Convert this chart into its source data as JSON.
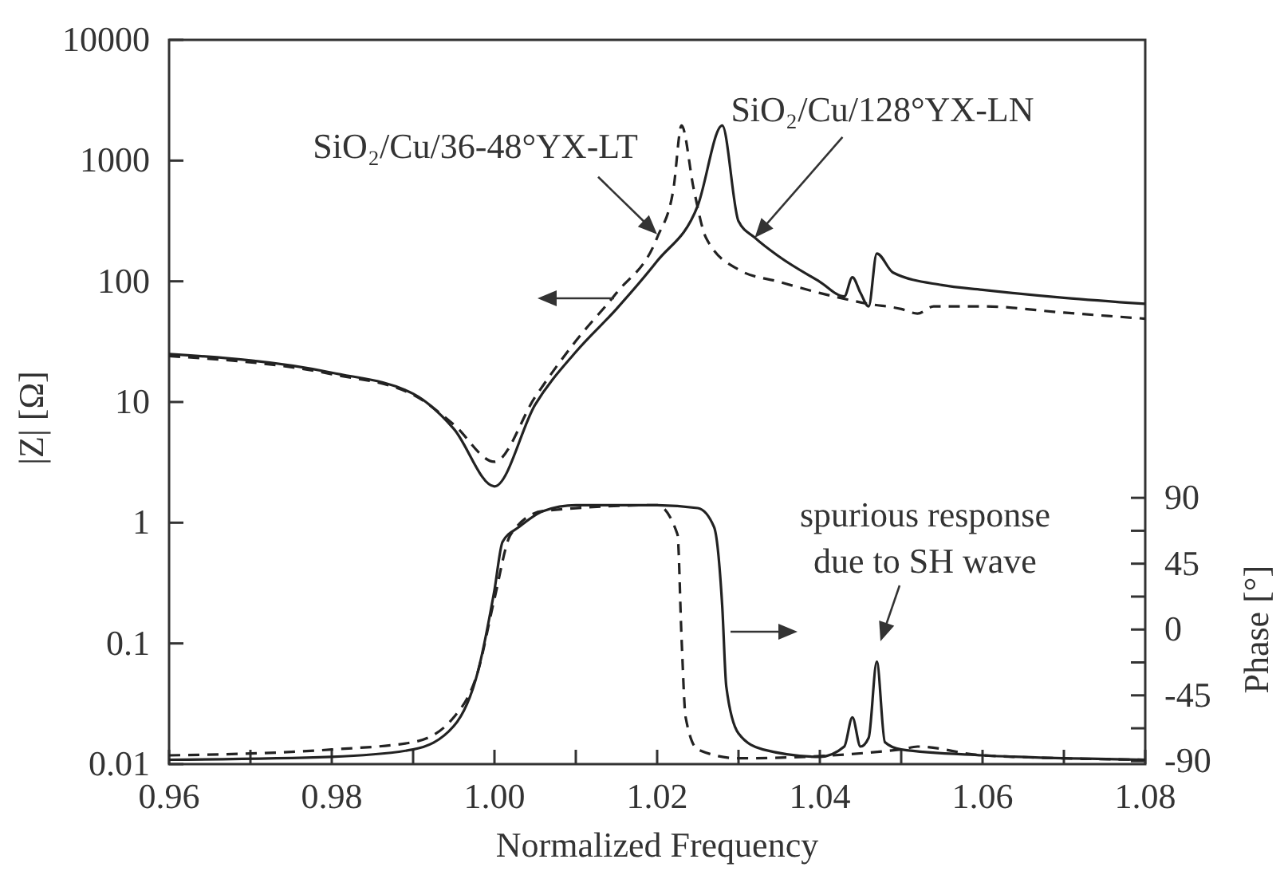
{
  "chart_data": {
    "type": "line",
    "xlabel": "Normalized Frequency",
    "ylabel": "|Z| [Ω]",
    "y2label": "Phase [°]",
    "log": "y",
    "grid": false,
    "marker": "none",
    "xlim": [
      0.96,
      1.08
    ],
    "xticks": [
      0.96,
      {
        "value": 0.97,
        "label": null
      },
      0.98,
      {
        "value": 0.99,
        "label": null
      },
      {
        "value": 1.0,
        "label": "1.00"
      },
      {
        "value": 1.01,
        "label": null
      },
      1.02,
      {
        "value": 1.03,
        "label": null
      },
      1.04,
      {
        "value": 1.05,
        "label": null
      },
      1.06,
      {
        "value": 1.07,
        "label": null
      },
      1.08
    ],
    "ylim": [
      0.01,
      10000
    ],
    "yticks": [
      0.01,
      0.1,
      1,
      10,
      100,
      1000,
      10000
    ],
    "y2lim": [
      -92,
      403
    ],
    "y2ticks": [
      -90,
      {
        "value": -67.5,
        "label": null
      },
      -45,
      {
        "value": -22.5,
        "label": null
      },
      0,
      {
        "value": 22.5,
        "label": null
      },
      45,
      {
        "value": 67.5,
        "label": null
      },
      90
    ],
    "series": [
      {
        "color": "#222222",
        "line_style": "solid",
        "x": [
          0.96,
          0.98,
          0.99,
          0.995,
          1.0,
          1.005,
          1.01,
          1.015,
          1.02,
          1.025,
          1.028,
          1.03,
          1.032,
          1.035,
          1.04,
          1.043,
          1.044,
          1.045,
          1.046,
          1.047,
          1.049,
          1.055,
          1.06,
          1.07,
          1.08
        ],
        "values": [
          25,
          17.5,
          11.7,
          6,
          2.0,
          9.5,
          26,
          59,
          147,
          425,
          1950,
          315,
          230,
          160,
          99,
          75,
          108,
          80,
          62,
          170,
          118,
          93,
          85,
          73,
          65
        ]
      },
      {
        "color": "#222222",
        "line_style": "dashed",
        "x": [
          0.96,
          0.98,
          0.99,
          0.995,
          1.0,
          1.005,
          1.01,
          1.015,
          1.02,
          1.022,
          1.023,
          1.0245,
          1.026,
          1.03,
          1.035,
          1.04,
          1.046,
          1.05,
          1.052,
          1.054,
          1.06,
          1.07,
          1.08
        ],
        "values": [
          24,
          17,
          11.5,
          6.5,
          3.2,
          11,
          32,
          80,
          230,
          580,
          1950,
          580,
          230,
          125,
          99,
          80,
          65,
          59,
          54,
          62,
          62,
          55,
          49
        ]
      },
      {
        "color": "#222222",
        "line_style": "solid",
        "axis": "y2",
        "x": [
          0.96,
          0.98,
          0.99,
          0.995,
          0.998,
          1.0,
          1.001,
          1.003,
          1.006,
          1.01,
          1.02,
          1.025,
          1.027,
          1.028,
          1.0285,
          1.03,
          1.033,
          1.04,
          1.043,
          1.044,
          1.045,
          1.046,
          1.047,
          1.048,
          1.05,
          1.06,
          1.08
        ],
        "values": [
          -89,
          -87,
          -82,
          -66,
          -28,
          27,
          60,
          70,
          81,
          85,
          85,
          83,
          70,
          16,
          -39,
          -71,
          -82,
          -87,
          -80,
          -60,
          -80,
          -74,
          -22,
          -77,
          -82,
          -86,
          -89
        ]
      },
      {
        "color": "#222222",
        "line_style": "dashed",
        "axis": "y2",
        "x": [
          0.96,
          0.98,
          0.99,
          0.995,
          0.998,
          1.0,
          1.002,
          1.006,
          1.02,
          1.0225,
          1.023,
          1.0235,
          1.025,
          1.03,
          1.05,
          1.052,
          1.06,
          1.08
        ],
        "values": [
          -86,
          -82,
          -77,
          -60,
          -28,
          21,
          65,
          81,
          85,
          65,
          -6,
          -60,
          -82,
          -88,
          -82,
          -80,
          -86,
          -89
        ]
      }
    ],
    "annotations": [
      {
        "text": "SiO₂/Cu/36-48°YX-LT",
        "x": 1.02,
        "y": 245
      },
      {
        "text": "SiO₂/Cu/128°YX-LN",
        "x": 1.032,
        "y": 230
      },
      "spurious response due to SH wave"
    ]
  }
}
